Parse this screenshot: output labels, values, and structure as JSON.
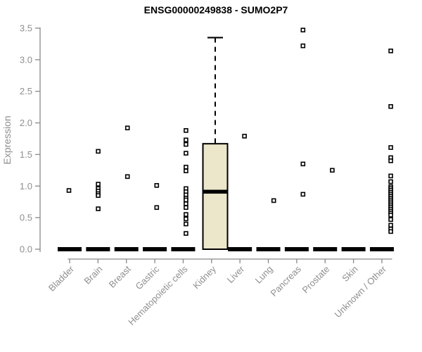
{
  "chart_data": {
    "type": "boxplot",
    "title": "ENSG00000249838 - SUMO2P7",
    "xlabel": "",
    "ylabel": "Expression",
    "ylim": [
      0,
      3.5
    ],
    "yticks": [
      0.0,
      0.5,
      1.0,
      1.5,
      2.0,
      2.5,
      3.0,
      3.5
    ],
    "grid": false,
    "legend": false,
    "categories": [
      "Bladder",
      "Brain",
      "Breast",
      "Gastric",
      "Hematopoietic cells",
      "Kidney",
      "Liver",
      "Lung",
      "Pancreas",
      "Prostate",
      "Skin",
      "Unknown / Other"
    ],
    "series": [
      {
        "label": "Bladder",
        "zero_bar": true,
        "points": [
          0.93
        ]
      },
      {
        "label": "Brain",
        "zero_bar": true,
        "points": [
          1.55,
          1.03,
          0.96,
          0.92,
          0.88,
          0.85,
          0.64
        ]
      },
      {
        "label": "Breast",
        "zero_bar": true,
        "points": [
          1.92,
          1.15
        ]
      },
      {
        "label": "Gastric",
        "zero_bar": true,
        "points": [
          1.01,
          0.66
        ]
      },
      {
        "label": "Hematopoietic cells",
        "zero_bar": true,
        "points": [
          1.88,
          1.73,
          1.66,
          1.52,
          1.3,
          1.24,
          0.96,
          0.91,
          0.86,
          0.81,
          0.78,
          0.72,
          0.66,
          0.55,
          0.48,
          0.4,
          0.25
        ]
      },
      {
        "label": "Kidney",
        "zero_bar": false,
        "box": {
          "whisker_low": 0.0,
          "q1": 0.0,
          "median": 0.91,
          "q3": 1.67,
          "whisker_high": 3.35
        },
        "points": []
      },
      {
        "label": "Liver",
        "zero_bar": true,
        "points": [
          1.79
        ]
      },
      {
        "label": "Lung",
        "zero_bar": true,
        "points": [
          0.77
        ]
      },
      {
        "label": "Pancreas",
        "zero_bar": true,
        "points": [
          3.47,
          3.22,
          1.35,
          0.87
        ]
      },
      {
        "label": "Prostate",
        "zero_bar": true,
        "points": [
          1.25
        ]
      },
      {
        "label": "Skin",
        "zero_bar": true,
        "points": []
      },
      {
        "label": "Unknown / Other",
        "zero_bar": true,
        "points": [
          3.14,
          2.26,
          1.61,
          1.45,
          1.4,
          1.16,
          1.07,
          0.99,
          0.96,
          0.93,
          0.9,
          0.87,
          0.84,
          0.81,
          0.78,
          0.75,
          0.72,
          0.69,
          0.66,
          0.63,
          0.6,
          0.57,
          0.54,
          0.47,
          0.38,
          0.32,
          0.28
        ]
      }
    ],
    "colors": {
      "background": "#ffffff",
      "box_fill": "#ece6cb",
      "box_border": "#000000",
      "median": "#000000",
      "marker": "#000000",
      "marker_fill": "#ffffff",
      "zero_bar": "#000000",
      "axis": "#898989",
      "tick_label": "#8f8f8f",
      "title": "#000000"
    }
  }
}
